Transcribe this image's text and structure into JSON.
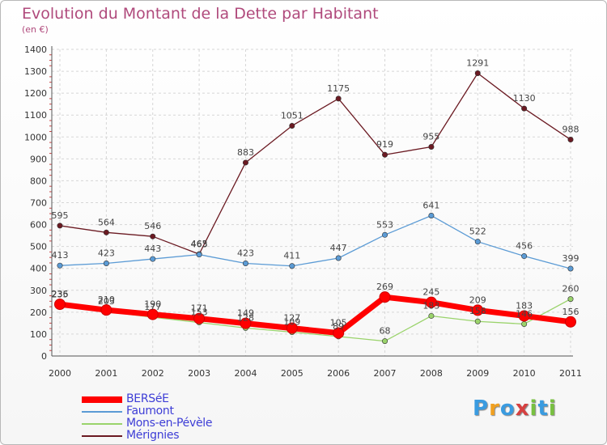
{
  "title": "Evolution du Montant de la Dette par Habitant",
  "subtitle": "(en €)",
  "logo": {
    "letters": [
      "P",
      "r",
      "o",
      "x",
      "i",
      "t",
      "i"
    ],
    "colors": [
      "#3a9be0",
      "#f0a020",
      "#3a9be0",
      "#d64040",
      "#78c040",
      "#3a9be0",
      "#78c040"
    ]
  },
  "chart_data": {
    "type": "line",
    "x": [
      "2000",
      "2001",
      "2002",
      "2003",
      "2004",
      "2005",
      "2006",
      "2007",
      "2008",
      "2009",
      "2010",
      "2011"
    ],
    "ylim": [
      0,
      1400
    ],
    "yticks": [
      "0",
      "100",
      "200",
      "300",
      "400",
      "500",
      "600",
      "700",
      "800",
      "900",
      "1000",
      "1100",
      "1200",
      "1300",
      "1400"
    ],
    "grid": true,
    "legend_position": "bottom-left",
    "series": [
      {
        "name": "Mérignies",
        "color": "#6b1a22",
        "values": [
          595,
          564,
          546,
          465,
          883,
          1051,
          1175,
          919,
          955,
          1291,
          1130,
          988
        ],
        "labels": [
          "595",
          "564",
          "546",
          "465",
          "883",
          "1051",
          "1175",
          "919",
          "955",
          "1291",
          "1130",
          "988"
        ]
      },
      {
        "name": "Faumont",
        "color": "#5b9bd5",
        "values": [
          413,
          423,
          443,
          463,
          423,
          411,
          447,
          553,
          641,
          522,
          456,
          399
        ],
        "labels": [
          "413",
          "423",
          "443",
          "463",
          "423",
          "411",
          "447",
          "553",
          "641",
          "522",
          "456",
          "399"
        ]
      },
      {
        "name": "Mons-en-Pévèle",
        "color": "#9ad36b",
        "values": [
          235,
          203,
          177,
          153,
          128,
          109,
          89,
          68,
          183,
          158,
          146,
          260
        ],
        "labels": [
          "235",
          "203",
          "177",
          "153",
          "128",
          "109",
          "89",
          "68",
          "183",
          "158",
          "146",
          "260"
        ]
      },
      {
        "name": "BERSéE",
        "color": "#ff0000",
        "values": [
          236,
          210,
          190,
          171,
          149,
          127,
          105,
          269,
          245,
          209,
          183,
          156
        ],
        "labels": [
          "236",
          "210",
          "190",
          "171",
          "149",
          "127",
          "105",
          "269",
          "245",
          "209",
          "183",
          "156"
        ]
      }
    ]
  }
}
